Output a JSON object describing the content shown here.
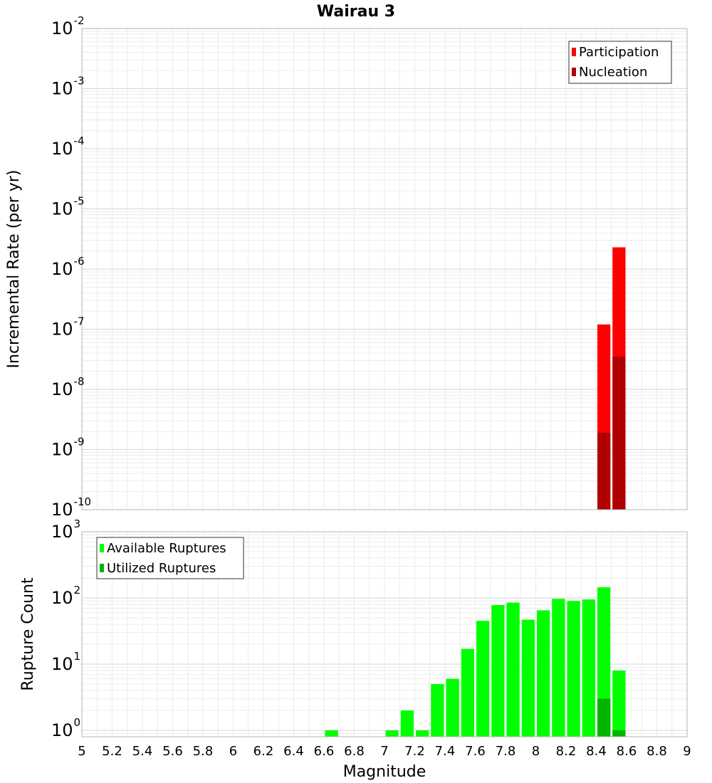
{
  "chart_data": [
    {
      "id": "rates",
      "type": "bar",
      "title": "Wairau 3",
      "xlabel": "",
      "ylabel": "Incremental Rate (per yr)",
      "yscale": "log",
      "ylim": [
        1e-10,
        0.01
      ],
      "xlim": [
        5,
        9
      ],
      "bin_width": 0.1,
      "grid": true,
      "legend_placement": "top-right",
      "y_ticks": [
        {
          "base": "10",
          "exp": "-2",
          "value": 0.01
        },
        {
          "base": "10",
          "exp": "-3",
          "value": 0.001
        },
        {
          "base": "10",
          "exp": "-4",
          "value": 0.0001
        },
        {
          "base": "10",
          "exp": "-5",
          "value": 1e-05
        },
        {
          "base": "10",
          "exp": "-6",
          "value": 1e-06
        },
        {
          "base": "10",
          "exp": "-7",
          "value": 1e-07
        },
        {
          "base": "10",
          "exp": "-8",
          "value": 1e-08
        },
        {
          "base": "10",
          "exp": "-9",
          "value": 1e-09
        },
        {
          "base": "10",
          "exp": "-10",
          "value": 1e-10
        }
      ],
      "series": [
        {
          "name": "Participation",
          "color": "#ff0000",
          "x": [
            8.45,
            8.55
          ],
          "values": [
            1.2e-07,
            2.3e-06
          ]
        },
        {
          "name": "Nucleation",
          "color": "#b00000",
          "x": [
            8.45,
            8.55
          ],
          "values": [
            1.9e-09,
            3.5e-08
          ]
        }
      ]
    },
    {
      "id": "counts",
      "type": "bar",
      "title": "",
      "xlabel": "Magnitude",
      "ylabel": "Rupture Count",
      "yscale": "log",
      "ylim": [
        0.8,
        1000
      ],
      "xlim": [
        5,
        9
      ],
      "bin_width": 0.1,
      "grid": true,
      "legend_placement": "top-left",
      "y_ticks": [
        {
          "base": "10",
          "exp": "3",
          "value": 1000
        },
        {
          "base": "10",
          "exp": "2",
          "value": 100
        },
        {
          "base": "10",
          "exp": "1",
          "value": 10
        },
        {
          "base": "10",
          "exp": "0",
          "value": 1
        }
      ],
      "x_ticks": [
        "5",
        "5.2",
        "5.4",
        "5.6",
        "5.8",
        "6",
        "6.2",
        "6.4",
        "6.6",
        "6.8",
        "7",
        "7.2",
        "7.4",
        "7.6",
        "7.8",
        "8",
        "8.2",
        "8.4",
        "8.6",
        "8.8",
        "9"
      ],
      "series": [
        {
          "name": "Available Ruptures",
          "color": "#00ff00",
          "x": [
            6.65,
            7.05,
            7.15,
            7.25,
            7.35,
            7.45,
            7.55,
            7.65,
            7.75,
            7.85,
            7.95,
            8.05,
            8.15,
            8.25,
            8.35,
            8.45,
            8.55
          ],
          "values": [
            1,
            1,
            2,
            1,
            5,
            6,
            17,
            45,
            78,
            85,
            47,
            65,
            97,
            90,
            95,
            145,
            8
          ]
        },
        {
          "name": "Utilized Ruptures",
          "color": "#00b400",
          "x": [
            8.45,
            8.55
          ],
          "values": [
            3,
            1
          ]
        }
      ]
    }
  ]
}
